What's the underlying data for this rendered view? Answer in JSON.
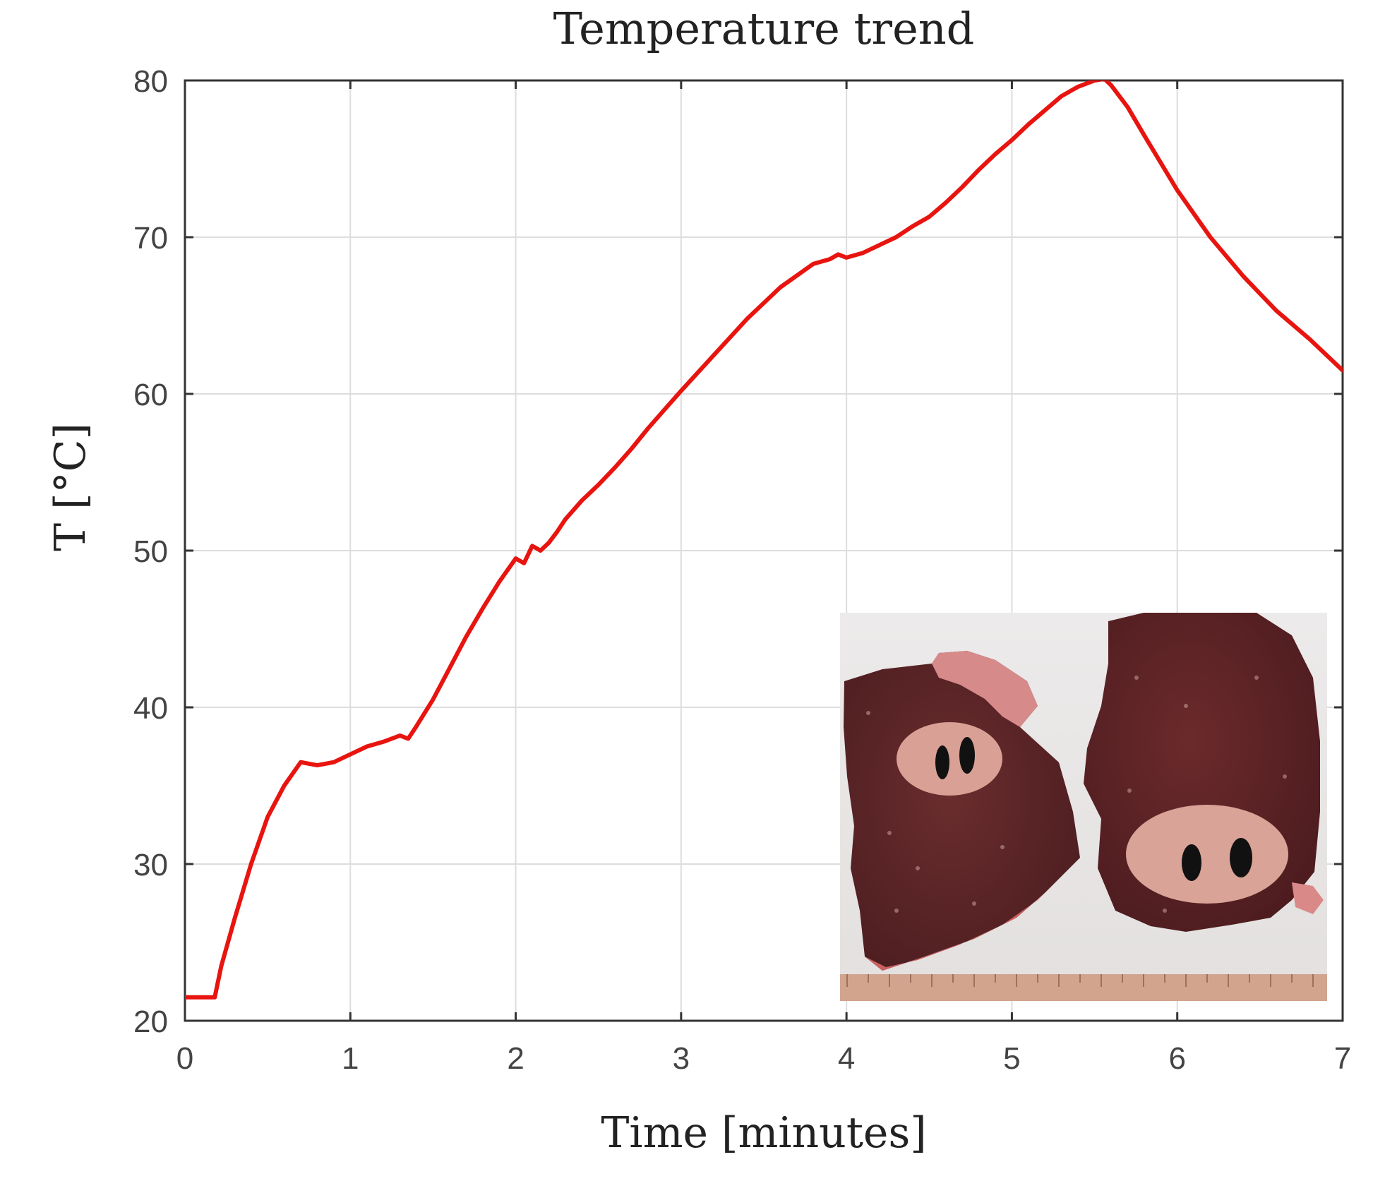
{
  "chart_data": {
    "type": "line",
    "title": "Temperature trend",
    "xlabel": "Time [minutes]",
    "ylabel": "T [°C]",
    "xlim": [
      0,
      7
    ],
    "ylim": [
      20,
      80
    ],
    "xticks": [
      0,
      1,
      2,
      3,
      4,
      5,
      6,
      7
    ],
    "yticks": [
      20,
      30,
      40,
      50,
      60,
      70,
      80
    ],
    "grid": true,
    "inset": "photo of two tissue slices with ablation zones",
    "colors": {
      "series": "#e8140f"
    },
    "series": [
      {
        "x": [
          0,
          0.18,
          0.22,
          0.3,
          0.4,
          0.5,
          0.6,
          0.7,
          0.8,
          0.9,
          1.0,
          1.1,
          1.2,
          1.3,
          1.35,
          1.4,
          1.5,
          1.6,
          1.7,
          1.8,
          1.9,
          2.0,
          2.05,
          2.1,
          2.15,
          2.2,
          2.25,
          2.3,
          2.4,
          2.5,
          2.6,
          2.7,
          2.8,
          2.9,
          3.0,
          3.2,
          3.4,
          3.6,
          3.8,
          3.9,
          3.95,
          4.0,
          4.1,
          4.2,
          4.3,
          4.4,
          4.5,
          4.6,
          4.7,
          4.8,
          4.9,
          5.0,
          5.1,
          5.2,
          5.3,
          5.4,
          5.5,
          5.56,
          5.6,
          5.7,
          5.8,
          6.0,
          6.2,
          6.4,
          6.6,
          6.8,
          7.0
        ],
        "y": [
          21.5,
          21.5,
          23.5,
          26.5,
          30,
          33,
          35,
          36.5,
          36.3,
          36.5,
          37,
          37.5,
          37.8,
          38.2,
          38,
          38.8,
          40.5,
          42.5,
          44.5,
          46.3,
          48,
          49.5,
          49.2,
          50.3,
          50.0,
          50.5,
          51.2,
          52,
          53.2,
          54.2,
          55.3,
          56.5,
          57.8,
          59,
          60.2,
          62.5,
          64.8,
          66.8,
          68.3,
          68.6,
          68.9,
          68.7,
          69,
          69.5,
          70,
          70.7,
          71.3,
          72.2,
          73.2,
          74.3,
          75.3,
          76.2,
          77.2,
          78.1,
          79,
          79.6,
          80,
          80.1,
          79.7,
          78.3,
          76.5,
          73,
          70,
          67.5,
          65.3,
          63.5,
          61.5
        ]
      }
    ]
  }
}
